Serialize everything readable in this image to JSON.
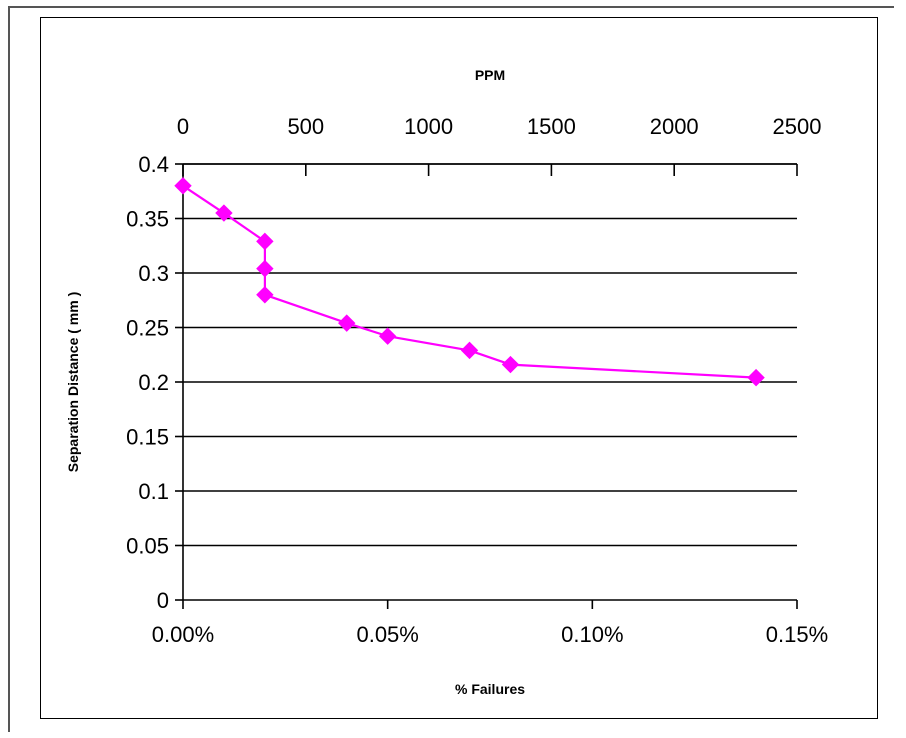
{
  "chart_data": {
    "type": "line",
    "title": "",
    "xlabel": "% Failures",
    "x2label": "PPM",
    "ylabel": "Separation Distance ( mm )",
    "xlim": [
      0,
      0.15
    ],
    "x2lim": [
      0,
      2500
    ],
    "ylim": [
      0,
      0.4
    ],
    "grid": "horizontal",
    "x_ticks": [
      0,
      0.05,
      0.1,
      0.15
    ],
    "x_tick_labels": [
      "0.00%",
      "0.05%",
      "0.10%",
      "0.15%"
    ],
    "x2_ticks": [
      0,
      500,
      1000,
      1500,
      2000,
      2500
    ],
    "x2_tick_labels": [
      "0",
      "500",
      "1000",
      "1500",
      "2000",
      "2500"
    ],
    "y_ticks": [
      0,
      0.05,
      0.1,
      0.15,
      0.2,
      0.25,
      0.3,
      0.35,
      0.4
    ],
    "y_tick_labels": [
      "0",
      "0.05",
      "0.1",
      "0.15",
      "0.2",
      "0.25",
      "0.3",
      "0.35",
      "0.4"
    ],
    "series": [
      {
        "color": "#ff00ff",
        "marker": "diamond",
        "points": [
          {
            "x": 0.0,
            "y": 0.38
          },
          {
            "x": 0.01,
            "y": 0.355
          },
          {
            "x": 0.02,
            "y": 0.329
          },
          {
            "x": 0.02,
            "y": 0.304
          },
          {
            "x": 0.02,
            "y": 0.28
          },
          {
            "x": 0.04,
            "y": 0.254
          },
          {
            "x": 0.05,
            "y": 0.242
          },
          {
            "x": 0.07,
            "y": 0.229
          },
          {
            "x": 0.08,
            "y": 0.216
          },
          {
            "x": 0.14,
            "y": 0.204
          }
        ]
      }
    ]
  }
}
